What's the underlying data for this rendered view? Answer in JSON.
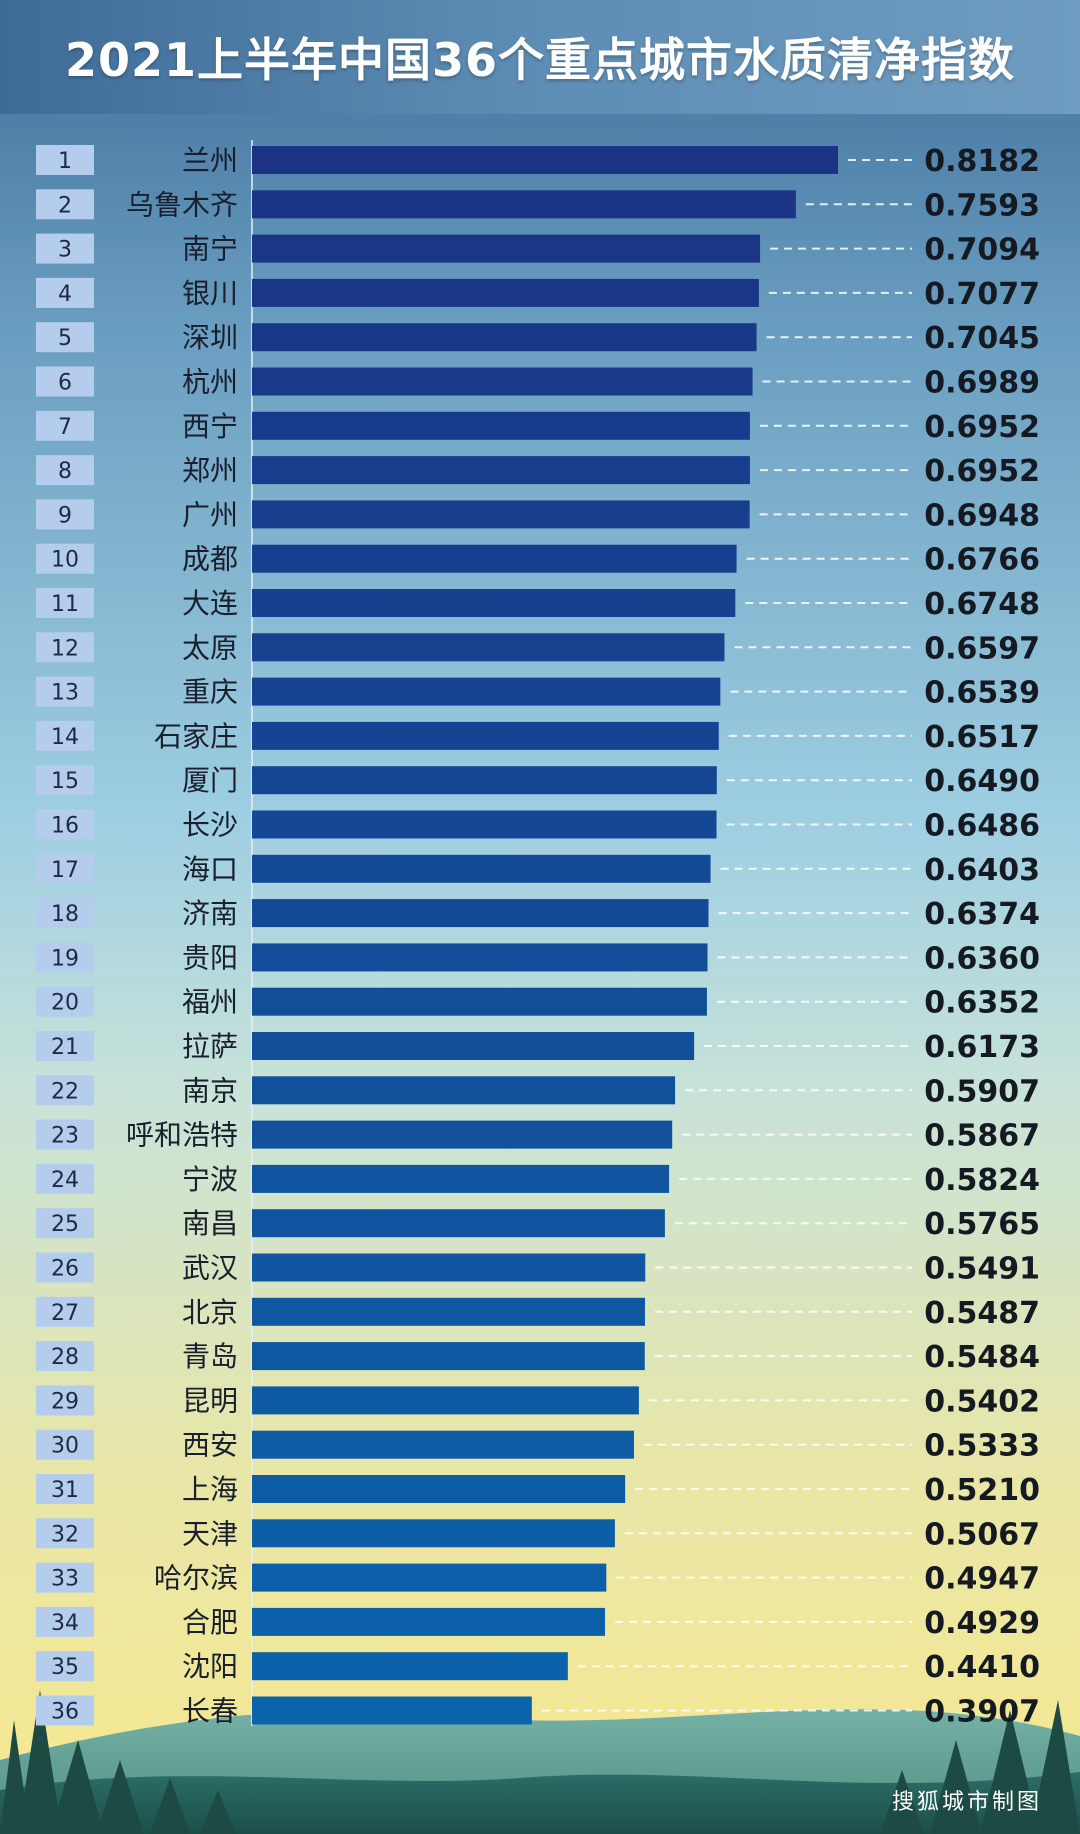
{
  "title": "2021上半年中国36个重点城市水质清净指数",
  "credit": "搜狐城市制图",
  "colors": {
    "bar_top": "#1c3384",
    "bar_bottom": "#0a63ab",
    "rank_box": "#b4cdec",
    "dash": "#ffffff"
  },
  "chart_data": {
    "type": "bar",
    "orientation": "horizontal",
    "categories": [
      "兰州",
      "乌鲁木齐",
      "南宁",
      "银川",
      "深圳",
      "杭州",
      "西宁",
      "郑州",
      "广州",
      "成都",
      "大连",
      "太原",
      "重庆",
      "石家庄",
      "厦门",
      "长沙",
      "海口",
      "济南",
      "贵阳",
      "福州",
      "拉萨",
      "南京",
      "呼和浩特",
      "宁波",
      "南昌",
      "武汉",
      "北京",
      "青岛",
      "昆明",
      "西安",
      "上海",
      "天津",
      "哈尔滨",
      "合肥",
      "沈阳",
      "长春"
    ],
    "ranks": [
      "1",
      "2",
      "3",
      "4",
      "5",
      "6",
      "7",
      "8",
      "9",
      "10",
      "11",
      "12",
      "13",
      "14",
      "15",
      "16",
      "17",
      "18",
      "19",
      "20",
      "21",
      "22",
      "23",
      "24",
      "25",
      "26",
      "27",
      "28",
      "29",
      "30",
      "31",
      "32",
      "33",
      "34",
      "35",
      "36"
    ],
    "values": [
      0.8182,
      0.7593,
      0.7094,
      0.7077,
      0.7045,
      0.6989,
      0.6952,
      0.6952,
      0.6948,
      0.6766,
      0.6748,
      0.6597,
      0.6539,
      0.6517,
      0.649,
      0.6486,
      0.6403,
      0.6374,
      0.636,
      0.6352,
      0.6173,
      0.5907,
      0.5867,
      0.5824,
      0.5765,
      0.5491,
      0.5487,
      0.5484,
      0.5402,
      0.5333,
      0.521,
      0.5067,
      0.4947,
      0.4929,
      0.441,
      0.3907
    ],
    "labels": [
      "0.8182",
      "0.7593",
      "0.7094",
      "0.7077",
      "0.7045",
      "0.6989",
      "0.6952",
      "0.6952",
      "0.6948",
      "0.6766",
      "0.6748",
      "0.6597",
      "0.6539",
      "0.6517",
      "0.6490",
      "0.6486",
      "0.6403",
      "0.6374",
      "0.6360",
      "0.6352",
      "0.6173",
      "0.5907",
      "0.5867",
      "0.5824",
      "0.5765",
      "0.5491",
      "0.5487",
      "0.5484",
      "0.5402",
      "0.5333",
      "0.5210",
      "0.5067",
      "0.4947",
      "0.4929",
      "0.4410",
      "0.3907"
    ],
    "xlim": [
      0,
      0.8182
    ],
    "grid": false,
    "legend": "none"
  }
}
